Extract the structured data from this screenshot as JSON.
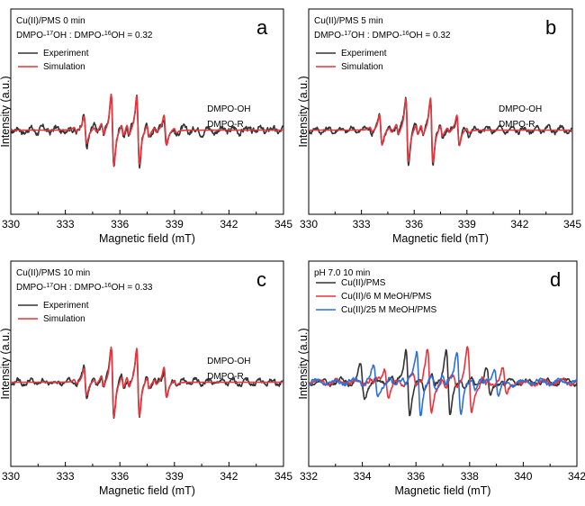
{
  "figure": {
    "ylabel": "Intensity (a.u.)",
    "xlabel": "Magnetic field (mT)"
  },
  "chart_data": [
    {
      "panel": "a",
      "type": "line",
      "title_lines": [
        "Cu(II)/PMS   0 min",
        "DMPO-17OH : DMPO-16OH = 0.32"
      ],
      "xlabel": "Magnetic field (mT)",
      "ylabel": "Intensity (a.u.)",
      "xlim": [
        330,
        345
      ],
      "xticks": [
        "330",
        "333",
        "336",
        "339",
        "342",
        "345"
      ],
      "annotations": [
        "DMPO-OH",
        "DMPO-R"
      ],
      "legend": "top-left",
      "series": [
        {
          "name": "Experiment",
          "color": "#333333",
          "lines": [
            334.1,
            335.6,
            337.0,
            338.5
          ],
          "amps": [
            0.42,
            0.95,
            0.95,
            0.42
          ],
          "noise": 0.07
        },
        {
          "name": "Simulation",
          "color": "#e8343c",
          "lines": [
            334.1,
            335.6,
            337.0,
            338.5
          ],
          "amps": [
            0.38,
            1.0,
            0.96,
            0.42
          ],
          "noise": 0.0
        }
      ]
    },
    {
      "panel": "b",
      "type": "line",
      "title_lines": [
        "Cu(II)/PMS   5 min",
        "DMPO-17OH : DMPO-16OH = 0.32"
      ],
      "xlabel": "Magnetic field (mT)",
      "ylabel": "Intensity (a.u.)",
      "xlim": [
        330,
        345
      ],
      "xticks": [
        "330",
        "333",
        "336",
        "339",
        "342",
        "345"
      ],
      "annotations": [
        "DMPO-OH",
        "DMPO-R"
      ],
      "legend": "top-left",
      "series": [
        {
          "name": "Experiment",
          "color": "#333333",
          "lines": [
            334.1,
            335.6,
            337.0,
            338.5
          ],
          "amps": [
            0.42,
            0.95,
            0.92,
            0.42
          ],
          "noise": 0.05
        },
        {
          "name": "Simulation",
          "color": "#e8343c",
          "lines": [
            334.1,
            335.6,
            337.0,
            338.5
          ],
          "amps": [
            0.42,
            0.88,
            0.9,
            0.42
          ],
          "noise": 0.0
        }
      ]
    },
    {
      "panel": "c",
      "type": "line",
      "title_lines": [
        "Cu(II)/PMS   10 min",
        "DMPO-17OH : DMPO-16OH = 0.33"
      ],
      "xlabel": "Magnetic field (mT)",
      "ylabel": "Intensity (a.u.)",
      "xlim": [
        330,
        345
      ],
      "xticks": [
        "330",
        "333",
        "336",
        "339",
        "342",
        "345"
      ],
      "annotations": [
        "DMPO-OH",
        "DMPO-R"
      ],
      "legend": "top-left",
      "series": [
        {
          "name": "Experiment",
          "color": "#333333",
          "lines": [
            334.1,
            335.6,
            337.0,
            338.5
          ],
          "amps": [
            0.4,
            0.95,
            0.92,
            0.4
          ],
          "noise": 0.05
        },
        {
          "name": "Simulation",
          "color": "#e8343c",
          "lines": [
            334.1,
            335.6,
            337.0,
            338.5
          ],
          "amps": [
            0.38,
            0.98,
            0.95,
            0.42
          ],
          "noise": 0.0
        }
      ]
    },
    {
      "panel": "d",
      "type": "line",
      "title_lines": [
        "pH 7.0   10 min"
      ],
      "xlabel": "Magnetic field (mT)",
      "ylabel": "Intensity (a.u.)",
      "xlim": [
        332,
        342
      ],
      "xticks": [
        "332",
        "334",
        "336",
        "338",
        "340",
        "342"
      ],
      "annotations": [],
      "legend": "top-left",
      "series": [
        {
          "name": "Cu(II)/PMS",
          "color": "#333333",
          "lines": [
            334.0,
            335.7,
            337.2,
            338.7
          ],
          "amps": [
            0.42,
            0.95,
            0.95,
            0.42
          ],
          "noise": 0.04
        },
        {
          "name": "Cu(II)/6 M MeOH/PMS",
          "color": "#e8343c",
          "lines": [
            334.9,
            336.5,
            338.0,
            339.3
          ],
          "amps": [
            0.42,
            0.92,
            0.92,
            0.4
          ],
          "noise": 0.04
        },
        {
          "name": "Cu(II)/25 M MeOH/PMS",
          "color": "#2f6fd8",
          "lines": [
            334.5,
            336.1,
            337.6,
            339.0
          ],
          "amps": [
            0.42,
            0.9,
            0.9,
            0.4
          ],
          "noise": 0.04
        }
      ]
    }
  ]
}
